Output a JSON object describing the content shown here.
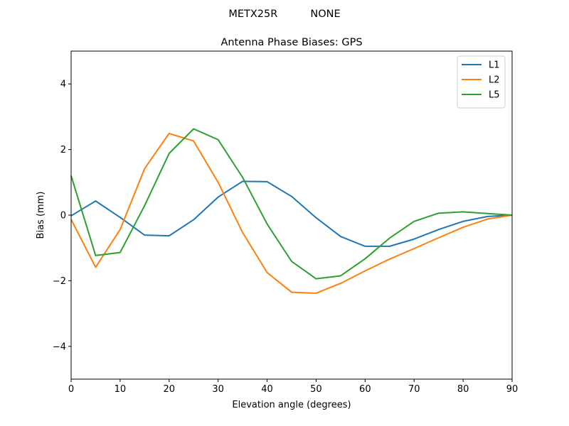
{
  "chart_data": {
    "type": "line",
    "suptitle": "METX25R          NONE",
    "title": "Antenna Phase Biases: GPS",
    "xlabel": "Elevation angle (degrees)",
    "ylabel": "Bias (mm)",
    "xlim": [
      0,
      90
    ],
    "ylim": [
      -5,
      5
    ],
    "xticks": [
      0,
      10,
      20,
      30,
      40,
      50,
      60,
      70,
      80,
      90
    ],
    "yticks": [
      -4,
      -2,
      0,
      2,
      4
    ],
    "yticklabels": [
      "−4",
      "−2",
      "0",
      "2",
      "4"
    ],
    "grid": false,
    "legend_position": "top-right",
    "x": [
      0,
      5,
      10,
      15,
      20,
      25,
      30,
      35,
      40,
      45,
      50,
      55,
      60,
      65,
      70,
      75,
      80,
      85,
      90
    ],
    "series": [
      {
        "name": "L1",
        "color": "#1f77b4",
        "values": [
          -0.02,
          0.43,
          -0.07,
          -0.61,
          -0.63,
          -0.14,
          0.55,
          1.03,
          1.02,
          0.57,
          -0.08,
          -0.65,
          -0.95,
          -0.95,
          -0.73,
          -0.44,
          -0.19,
          -0.04,
          0.0
        ]
      },
      {
        "name": "L2",
        "color": "#ff7f0e",
        "values": [
          -0.13,
          -1.59,
          -0.44,
          1.42,
          2.49,
          2.26,
          1.0,
          -0.53,
          -1.75,
          -2.35,
          -2.38,
          -2.08,
          -1.7,
          -1.34,
          -1.02,
          -0.69,
          -0.37,
          -0.12,
          0.0
        ]
      },
      {
        "name": "L5",
        "color": "#2ca02c",
        "values": [
          1.2,
          -1.23,
          -1.14,
          0.29,
          1.88,
          2.63,
          2.3,
          1.15,
          -0.27,
          -1.41,
          -1.94,
          -1.85,
          -1.33,
          -0.7,
          -0.19,
          0.06,
          0.1,
          0.05,
          0.0
        ]
      }
    ]
  }
}
